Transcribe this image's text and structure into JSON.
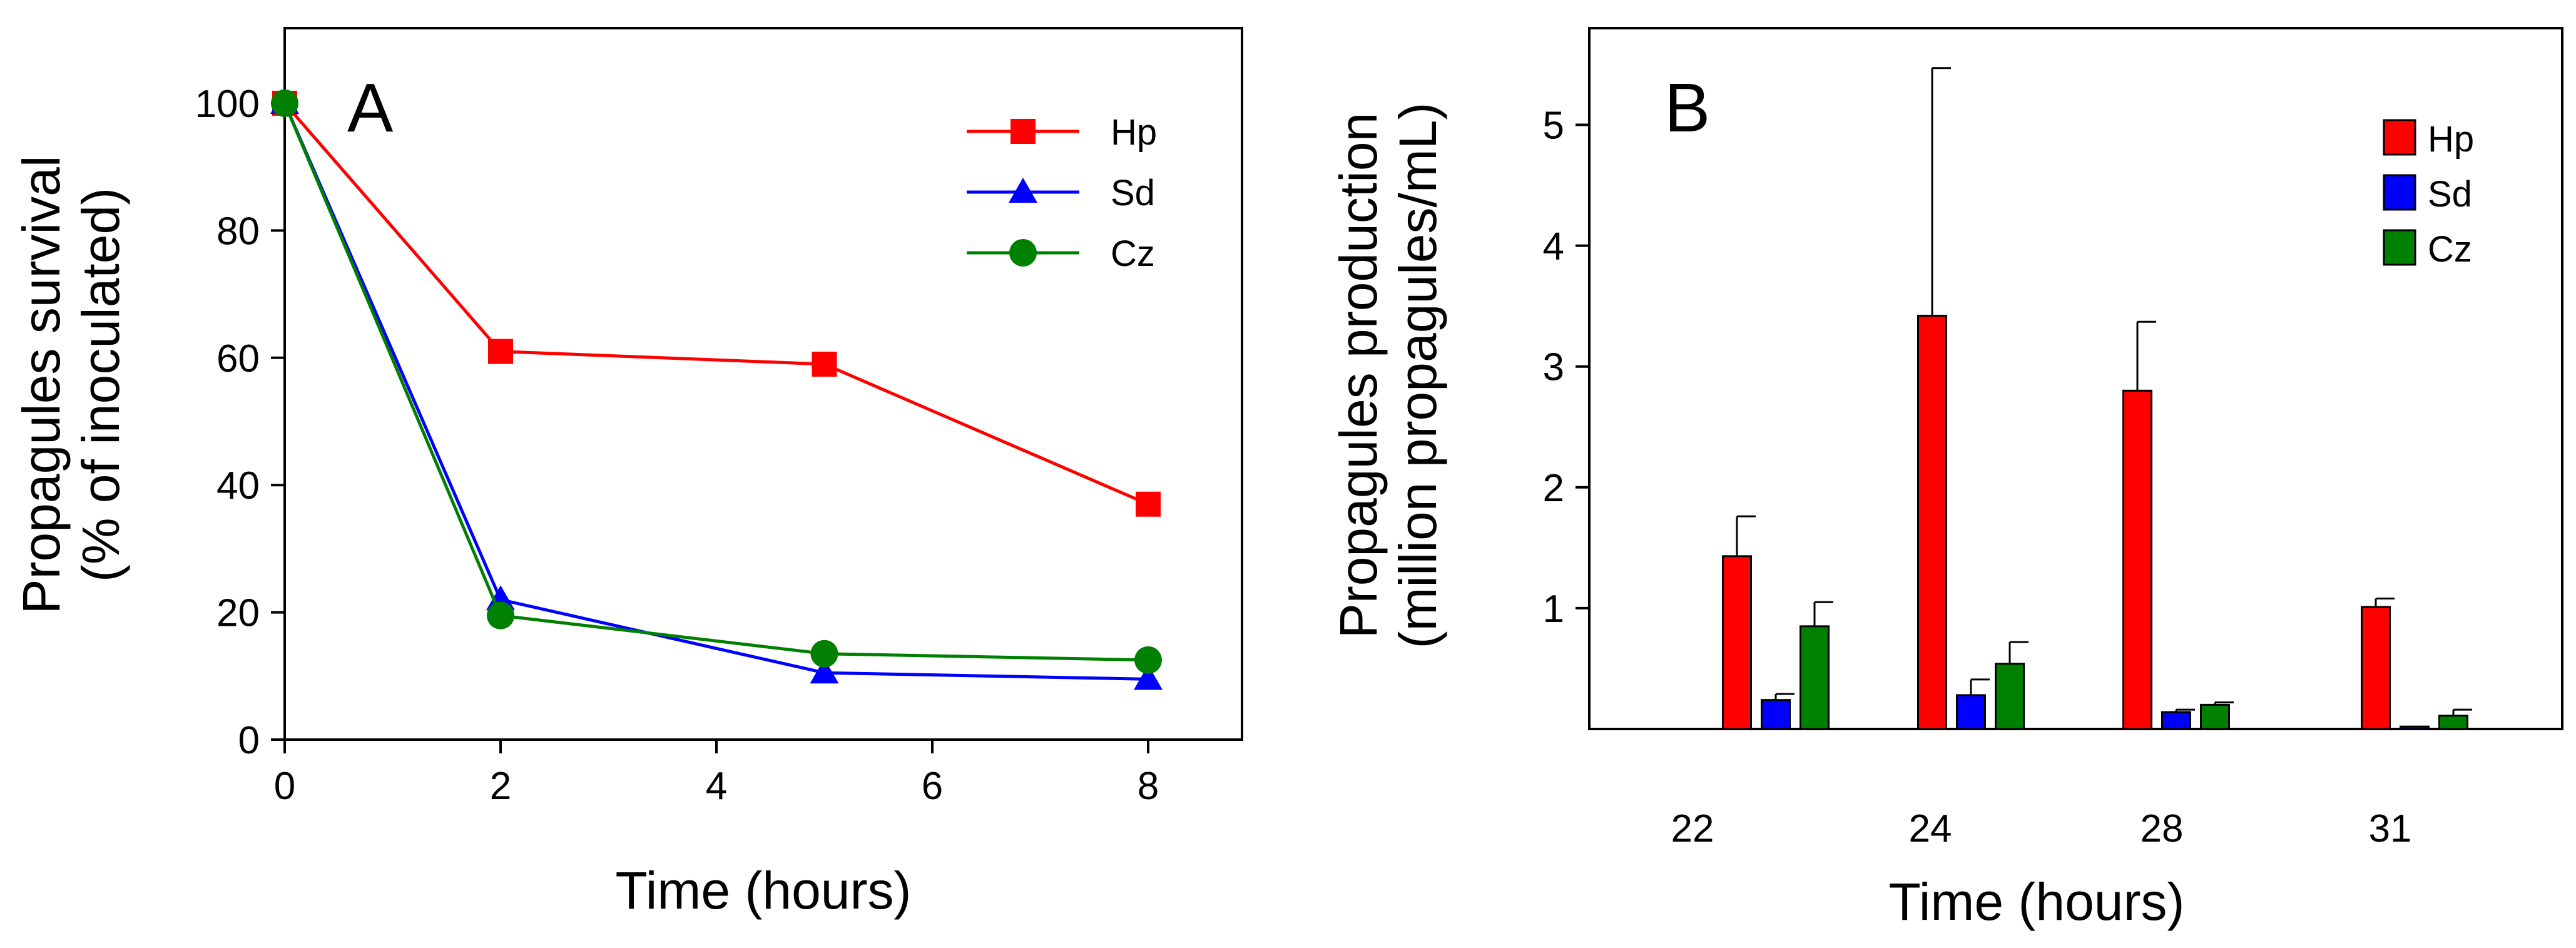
{
  "chart_data": [
    {
      "type": "line",
      "panel_label": "A",
      "xlabel": "Time (hours)",
      "ylabel": [
        "Propagules survival",
        "(% of inoculated)"
      ],
      "xlim": [
        0,
        8
      ],
      "ylim": [
        0,
        100
      ],
      "x_ticks": [
        "0",
        "2",
        "4",
        "6",
        "8"
      ],
      "y_ticks": [
        "0",
        "20",
        "40",
        "60",
        "80",
        "100"
      ],
      "grid": false,
      "legend_position": "top-right",
      "series": [
        {
          "name": "Hp",
          "color": "#ff0000",
          "marker": "square",
          "x": [
            0,
            2,
            5,
            8
          ],
          "y": [
            100,
            61,
            59,
            37
          ]
        },
        {
          "name": "Sd",
          "color": "#0000ff",
          "marker": "triangle",
          "x": [
            0,
            2,
            5,
            8
          ],
          "y": [
            100,
            22,
            10.5,
            9.5
          ]
        },
        {
          "name": "Cz",
          "color": "#008000",
          "marker": "circle",
          "x": [
            0,
            2,
            5,
            8
          ],
          "y": [
            100,
            19.5,
            13.5,
            12.5
          ]
        }
      ]
    },
    {
      "type": "bar",
      "panel_label": "B",
      "xlabel": "Time (hours)",
      "ylabel": [
        "Propagules production",
        "(million propagules/mL)"
      ],
      "categories": [
        "22",
        "24",
        "28",
        "31"
      ],
      "ylim": [
        0,
        5.8
      ],
      "y_ticks": [
        "1",
        "2",
        "3",
        "4",
        "5"
      ],
      "grid": false,
      "legend_position": "top-right",
      "series": [
        {
          "name": "Hp",
          "color": "#ff0000",
          "values": [
            1.43,
            3.42,
            2.8,
            1.01
          ],
          "errors": [
            0.33,
            2.05,
            0.57,
            0.07
          ]
        },
        {
          "name": "Sd",
          "color": "#0000ff",
          "values": [
            0.24,
            0.28,
            0.14,
            0.02
          ],
          "errors": [
            0.05,
            0.13,
            0.02,
            0.0
          ]
        },
        {
          "name": "Cz",
          "color": "#008000",
          "values": [
            0.85,
            0.54,
            0.2,
            0.11
          ],
          "errors": [
            0.2,
            0.18,
            0.02,
            0.05
          ]
        }
      ]
    }
  ]
}
